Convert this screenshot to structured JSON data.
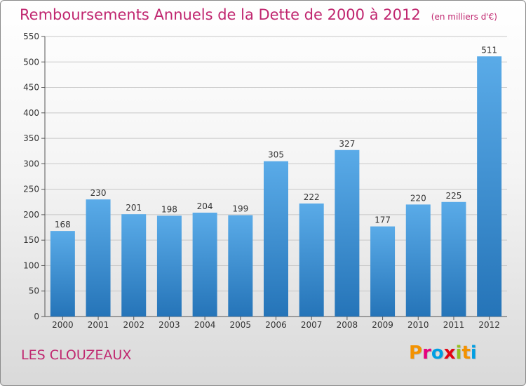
{
  "colors": {
    "accent": "#c0266f",
    "bar_light": "#5aabe8",
    "bar_dark": "#2574b8",
    "grid": "#c8c8c8"
  },
  "chart_data": {
    "type": "bar",
    "title": "Remboursements Annuels de la Dette de 2000 à 2012",
    "subtitle": "(en milliers d'€)",
    "categories": [
      "2000",
      "2001",
      "2002",
      "2003",
      "2004",
      "2005",
      "2006",
      "2007",
      "2008",
      "2009",
      "2010",
      "2011",
      "2012"
    ],
    "values": [
      168,
      230,
      201,
      198,
      204,
      199,
      305,
      222,
      327,
      177,
      220,
      225,
      511
    ],
    "ylim": [
      0,
      550
    ],
    "yticks": [
      0,
      50,
      100,
      150,
      200,
      250,
      300,
      350,
      400,
      450,
      500,
      550
    ],
    "grid": true,
    "xlabel": "",
    "ylabel": ""
  },
  "footer": {
    "commune": "LES CLOUZEAUX"
  },
  "logo": {
    "text": "Proxiti",
    "letters": [
      {
        "ch": "P",
        "color": "#f39200"
      },
      {
        "ch": "r",
        "color": "#e6007e"
      },
      {
        "ch": "o",
        "color": "#009fe3"
      },
      {
        "ch": "x",
        "color": "#e30613"
      },
      {
        "ch": "i",
        "color": "#95c11f"
      },
      {
        "ch": "t",
        "color": "#f39200"
      },
      {
        "ch": "i",
        "color": "#009fe3"
      }
    ]
  }
}
